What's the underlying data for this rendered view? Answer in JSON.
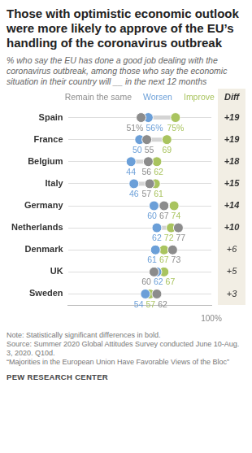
{
  "chart_data": {
    "type": "dot",
    "title": "Those with optimistic economic outlook were more likely to approve of the EU’s handling of the coronavirus outbreak",
    "subtitle": "% who say the EU has done a good job dealing with the coronavirus outbreak, among those who say the economic situation in their country will __ in the next 12 months",
    "categories": [
      "Spain",
      "France",
      "Belgium",
      "Italy",
      "Germany",
      "Netherlands",
      "Denmark",
      "UK",
      "Sweden"
    ],
    "series": [
      {
        "name": "Remain the same",
        "color": "#8c8c8c",
        "values": [
          51,
          55,
          56,
          57,
          67,
          77,
          73,
          60,
          62
        ],
        "value_labels": [
          "51%",
          "55",
          "56",
          "57",
          "67",
          "77",
          "73",
          "60",
          "62"
        ]
      },
      {
        "name": "Worsen",
        "color": "#6b9fd8",
        "values": [
          56,
          50,
          44,
          46,
          60,
          62,
          61,
          62,
          54
        ],
        "value_labels": [
          "56%",
          "50",
          "44",
          "46",
          "60",
          "62",
          "61",
          "62",
          "54"
        ]
      },
      {
        "name": "Improve",
        "color": "#a9c45f",
        "values": [
          75,
          69,
          62,
          61,
          74,
          72,
          67,
          67,
          57
        ],
        "value_labels": [
          "75%",
          "69",
          "62",
          "61",
          "74",
          "72",
          "67",
          "67",
          "57"
        ]
      }
    ],
    "diff": {
      "title": "Diff",
      "values": [
        19,
        19,
        18,
        15,
        14,
        10,
        6,
        5,
        3
      ],
      "labels": [
        "+19",
        "+19",
        "+18",
        "+15",
        "+14",
        "+10",
        "+6",
        "+5",
        "+3"
      ],
      "significant": [
        true,
        true,
        true,
        true,
        true,
        true,
        false,
        false,
        false
      ]
    },
    "xlim": [
      0,
      100
    ],
    "xticks": [
      {
        "value": 100,
        "label": "100%"
      }
    ],
    "orientation": "horizontal",
    "data_labels": true,
    "legend": "top",
    "grid": true,
    "note": "Note: Statistically significant differences in bold.",
    "source": "Source: Summer 2020 Global Attitudes Survey conducted June 10-Aug. 3, 2020. Q10d.",
    "report": "“Majorities in the European Union Have Favorable Views of the Bloc”",
    "credit": "PEW RESEARCH CENTER"
  }
}
